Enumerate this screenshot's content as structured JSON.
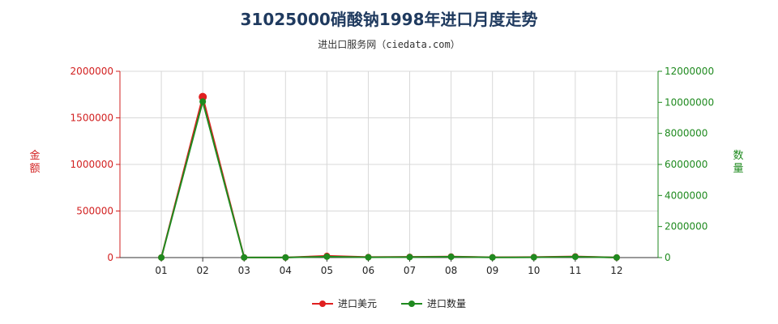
{
  "chart_data": {
    "type": "line",
    "title": "31025000硝酸钠1998年进口月度走势",
    "subtitle": "进出口服务网（ciedata.com）",
    "categories": [
      "01",
      "02",
      "03",
      "04",
      "05",
      "06",
      "07",
      "08",
      "09",
      "10",
      "11",
      "12"
    ],
    "y_left": {
      "label": "金额",
      "ylim": [
        0,
        2000000
      ],
      "ticks": [
        "2000000",
        "1500000",
        "1000000",
        "500000",
        "0"
      ],
      "tick_values": [
        2000000,
        1500000,
        1000000,
        500000,
        0
      ]
    },
    "y_right": {
      "label": "数量",
      "ylim": [
        0,
        12000000
      ],
      "ticks": [
        "12000000",
        "10000000",
        "8000000",
        "6000000",
        "4000000",
        "2000000",
        "0"
      ],
      "tick_values": [
        12000000,
        10000000,
        8000000,
        6000000,
        4000000,
        2000000,
        0
      ]
    },
    "series": [
      {
        "name": "进口美元",
        "axis": "left",
        "color": "#e02020",
        "values": [
          1000,
          1725000,
          2000,
          1000,
          18000,
          5000,
          8000,
          11000,
          3000,
          5000,
          12000,
          1000
        ]
      },
      {
        "name": "进口数量",
        "axis": "right",
        "color": "#1f8a1f",
        "values": [
          2000,
          10050000,
          8000,
          4000,
          60000,
          20000,
          30000,
          50000,
          10000,
          20000,
          50000,
          4000
        ]
      }
    ],
    "grid": true,
    "legend_position": "bottom"
  }
}
